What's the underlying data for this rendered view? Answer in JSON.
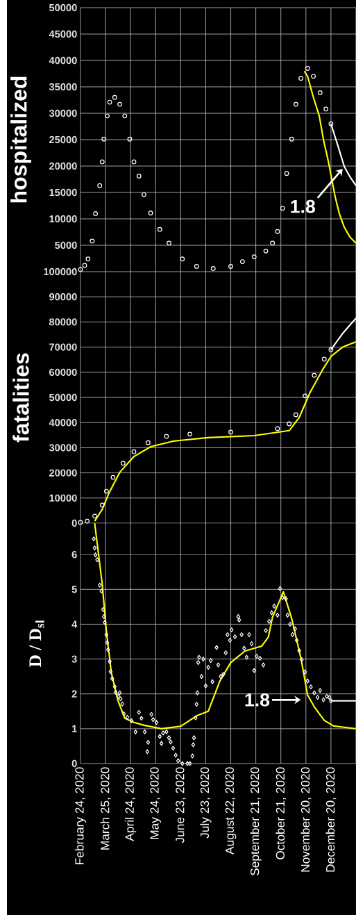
{
  "chart_data": [
    {
      "type": "scatter",
      "ylabel": "hospitalized",
      "xlim": [
        "2020-02-24",
        "2021-01-19"
      ],
      "ylim": [
        0,
        50000
      ],
      "grid": true,
      "tick_labels": "y",
      "xticks": [
        {
          "value": "2020-02-24",
          "label": null
        },
        {
          "value": "2020-03-25",
          "label": null
        },
        {
          "value": "2020-04-24",
          "label": null
        },
        {
          "value": "2020-05-24",
          "label": null
        },
        {
          "value": "2020-06-23",
          "label": null
        },
        {
          "value": "2020-07-23",
          "label": null
        },
        {
          "value": "2020-08-22",
          "label": null
        },
        {
          "value": "2020-09-21",
          "label": null
        },
        {
          "value": "2020-10-21",
          "label": null
        },
        {
          "value": "2020-11-20",
          "label": null
        },
        {
          "value": "2020-12-20",
          "label": null
        },
        {
          "value": "2021-01-19",
          "label": null
        }
      ],
      "yticks": [
        5000,
        10000,
        15000,
        20000,
        25000,
        30000,
        35000,
        40000,
        45000,
        50000
      ],
      "series": [
        {
          "type": "scatter",
          "marker": "circle",
          "color": "#ffffff",
          "x": [
            "2020-02-24",
            "2020-02-29",
            "2020-03-04",
            "2020-03-09",
            "2020-03-13",
            "2020-03-18",
            "2020-03-21",
            "2020-03-23",
            "2020-03-27",
            "2020-03-30",
            "2020-04-05",
            "2020-04-11",
            "2020-04-17",
            "2020-04-23",
            "2020-04-28",
            "2020-05-04",
            "2020-05-10",
            "2020-05-18",
            "2020-05-29",
            "2020-06-09",
            "2020-06-25",
            "2020-07-12",
            "2020-08-01",
            "2020-08-22",
            "2020-09-05",
            "2020-09-19",
            "2020-10-03",
            "2020-10-11",
            "2020-10-17",
            "2020-10-23",
            "2020-10-28",
            "2020-11-03",
            "2020-11-08",
            "2020-11-14",
            "2020-11-22",
            "2020-11-29",
            "2020-12-07",
            "2020-12-14",
            "2020-12-20"
          ],
          "values": [
            400,
            1200,
            2400,
            5800,
            11000,
            16300,
            20800,
            25100,
            29500,
            32100,
            33000,
            31700,
            29500,
            25100,
            20800,
            18100,
            14600,
            11100,
            8000,
            5400,
            2400,
            1000,
            600,
            1000,
            1900,
            2800,
            3900,
            5400,
            7600,
            12000,
            18600,
            25100,
            31700,
            36600,
            38500,
            37000,
            33900,
            30800,
            28000
          ]
        },
        {
          "type": "line",
          "marker": "none",
          "color": "#ffff00",
          "x": [
            "2020-11-18",
            "2020-11-22",
            "2020-11-29",
            "2020-12-06",
            "2020-12-11",
            "2020-12-17",
            "2020-12-25",
            "2020-12-30",
            "2021-01-05",
            "2021-01-12",
            "2021-01-19"
          ],
          "values": [
            38000,
            37000,
            33000,
            29500,
            25000,
            20800,
            14200,
            11000,
            8400,
            6500,
            5400
          ]
        },
        {
          "type": "line",
          "marker": "none",
          "color": "#ffffff",
          "x": [
            "2020-12-20",
            "2020-12-28",
            "2021-01-05",
            "2021-01-12",
            "2021-01-19"
          ],
          "values": [
            28000,
            24000,
            19900,
            17900,
            16300
          ]
        }
      ],
      "annotations": [
        {
          "text": "1.8",
          "x": "2021-01-03",
          "y": 19500
        }
      ]
    },
    {
      "type": "scatter",
      "ylabel": "fatalities",
      "xlim": [
        "2020-02-24",
        "2021-01-19"
      ],
      "ylim": [
        0,
        100000
      ],
      "grid": true,
      "tick_labels": "y",
      "xticks": [
        {
          "value": "2020-02-24",
          "label": null
        },
        {
          "value": "2020-03-25",
          "label": null
        },
        {
          "value": "2020-04-24",
          "label": null
        },
        {
          "value": "2020-05-24",
          "label": null
        },
        {
          "value": "2020-06-23",
          "label": null
        },
        {
          "value": "2020-07-23",
          "label": null
        },
        {
          "value": "2020-08-22",
          "label": null
        },
        {
          "value": "2020-09-21",
          "label": null
        },
        {
          "value": "2020-10-21",
          "label": null
        },
        {
          "value": "2020-11-20",
          "label": null
        },
        {
          "value": "2020-12-20",
          "label": null
        },
        {
          "value": "2021-01-19",
          "label": null
        }
      ],
      "yticks": [
        0,
        10000,
        20000,
        30000,
        40000,
        50000,
        60000,
        70000,
        80000,
        90000,
        100000
      ],
      "series": [
        {
          "type": "scatter",
          "marker": "circle",
          "color": "#ffffff",
          "x": [
            "2020-02-24",
            "2020-03-03",
            "2020-03-12",
            "2020-03-21",
            "2020-03-26",
            "2020-04-03",
            "2020-04-15",
            "2020-04-28",
            "2020-05-15",
            "2020-06-06",
            "2020-07-04",
            "2020-08-22",
            "2020-10-17",
            "2020-10-31",
            "2020-11-08",
            "2020-11-19",
            "2020-11-30",
            "2020-12-12",
            "2020-12-20"
          ],
          "values": [
            300,
            800,
            2800,
            7200,
            12700,
            18200,
            23800,
            28400,
            32000,
            34500,
            35400,
            36200,
            37600,
            39500,
            43100,
            50600,
            58800,
            65200,
            69000
          ]
        },
        {
          "type": "line",
          "marker": "none",
          "color": "#ffff00",
          "x": [
            "2020-03-12",
            "2020-03-21",
            "2020-03-29",
            "2020-04-11",
            "2020-04-28",
            "2020-05-18",
            "2020-06-14",
            "2020-07-26",
            "2020-09-19",
            "2020-10-31",
            "2020-11-12",
            "2020-11-25",
            "2020-12-10",
            "2020-12-20",
            "2021-01-03",
            "2021-01-19"
          ],
          "values": [
            800,
            5500,
            11900,
            20200,
            26500,
            30400,
            32600,
            34000,
            34800,
            36800,
            42000,
            52000,
            61000,
            66300,
            70000,
            72100
          ]
        },
        {
          "type": "line",
          "marker": "none",
          "color": "#ffffff",
          "x": [
            "2020-12-20",
            "2021-01-03",
            "2021-01-19"
          ],
          "values": [
            69000,
            75400,
            81500
          ]
        }
      ]
    },
    {
      "type": "scatter",
      "ylabel": "D / D$_{sl}$",
      "xlim": [
        "2020-02-24",
        "2021-01-19"
      ],
      "ylim": [
        0,
        6.9
      ],
      "grid": true,
      "xticks": [
        {
          "value": "2020-02-24",
          "label": "February 24, 2020"
        },
        {
          "value": "2020-03-25",
          "label": "March 25, 2020"
        },
        {
          "value": "2020-04-24",
          "label": "April 24, 2020"
        },
        {
          "value": "2020-05-24",
          "label": "May 24, 2020"
        },
        {
          "value": "2020-06-23",
          "label": "June 23, 2020"
        },
        {
          "value": "2020-07-23",
          "label": "July 23, 2020"
        },
        {
          "value": "2020-08-22",
          "label": "August 22, 2020"
        },
        {
          "value": "2020-09-21",
          "label": "September 21, 2020"
        },
        {
          "value": "2020-10-21",
          "label": "October 21, 2020"
        },
        {
          "value": "2020-11-20",
          "label": "November 20, 2020"
        },
        {
          "value": "2020-12-20",
          "label": "December 20, 2020"
        },
        {
          "value": "2021-01-19",
          "label": null
        }
      ],
      "yticks": [
        0,
        1,
        2,
        3,
        4,
        5,
        6
      ],
      "series": [
        {
          "type": "line",
          "marker": "none",
          "color": "#ffff00",
          "x": [
            "2020-03-12",
            "2020-03-21",
            "2020-03-26",
            "2020-04-01",
            "2020-04-09",
            "2020-04-17",
            "2020-04-28",
            "2020-05-10",
            "2020-05-31",
            "2020-06-23",
            "2020-07-12",
            "2020-07-26",
            "2020-08-09",
            "2020-08-22",
            "2020-09-08",
            "2020-09-28",
            "2020-10-06",
            "2020-10-11",
            "2020-10-24",
            "2020-11-03",
            "2020-11-14",
            "2020-11-22",
            "2020-11-30",
            "2020-12-12",
            "2020-12-23",
            "2021-01-19"
          ],
          "values": [
            6.9,
            5.16,
            3.8,
            2.6,
            1.8,
            1.3,
            1.18,
            1.1,
            1.0,
            1.07,
            1.37,
            1.5,
            2.37,
            2.9,
            3.23,
            3.37,
            3.63,
            4.2,
            4.93,
            4.16,
            3.03,
            1.97,
            1.63,
            1.24,
            1.08,
            1.0
          ]
        },
        {
          "type": "scatter",
          "marker": "diamond",
          "color": "#ffffff",
          "x": [
            "2020-03-11",
            "2020-03-12",
            "2020-03-13",
            "2020-03-15",
            "2020-03-18",
            "2020-03-20",
            "2020-03-22",
            "2020-03-23",
            "2020-03-24",
            "2020-03-26",
            "2020-03-27",
            "2020-03-28",
            "2020-03-30",
            "2020-03-31",
            "2020-04-02",
            "2020-04-05",
            "2020-04-06",
            "2020-04-09",
            "2020-04-11",
            "2020-04-12",
            "2020-04-14",
            "2020-04-16",
            "2020-04-20",
            "2020-04-25",
            "2020-04-30",
            "2020-05-04",
            "2020-05-07",
            "2020-05-11",
            "2020-05-14",
            "2020-05-15",
            "2020-05-19",
            "2020-05-21",
            "2020-05-25",
            "2020-05-29",
            "2020-05-31",
            "2020-06-02",
            "2020-06-06",
            "2020-06-09",
            "2020-06-11",
            "2020-06-14",
            "2020-06-17",
            "2020-06-20",
            "2020-06-25",
            "2020-07-01",
            "2020-07-04",
            "2020-07-07",
            "2020-07-08",
            "2020-07-09",
            "2020-07-11",
            "2020-07-12",
            "2020-07-13",
            "2020-07-14",
            "2020-07-15",
            "2020-07-18",
            "2020-07-20",
            "2020-07-23",
            "2020-07-26",
            "2020-07-29",
            "2020-07-31",
            "2020-08-05",
            "2020-08-07",
            "2020-08-10",
            "2020-08-13",
            "2020-08-16",
            "2020-08-18",
            "2020-08-21",
            "2020-08-23",
            "2020-08-27",
            "2020-08-31",
            "2020-09-01",
            "2020-09-04",
            "2020-09-07",
            "2020-09-10",
            "2020-09-13",
            "2020-09-16",
            "2020-09-19",
            "2020-09-22",
            "2020-09-26",
            "2020-09-30",
            "2020-10-03",
            "2020-10-07",
            "2020-10-10",
            "2020-10-13",
            "2020-10-17",
            "2020-10-20",
            "2020-10-23",
            "2020-10-27",
            "2020-10-29",
            "2020-11-01",
            "2020-11-04",
            "2020-11-07",
            "2020-11-09",
            "2020-11-12",
            "2020-11-15",
            "2020-11-19",
            "2020-11-22",
            "2020-11-26",
            "2020-11-30",
            "2020-12-04",
            "2020-12-07",
            "2020-12-11",
            "2020-12-15",
            "2020-12-18",
            "2020-12-20"
          ],
          "values": [
            6.45,
            6.19,
            5.99,
            5.85,
            5.12,
            4.95,
            4.42,
            4.22,
            4.05,
            3.7,
            3.47,
            3.27,
            2.93,
            2.64,
            2.44,
            2.21,
            2.05,
            1.93,
            2.03,
            1.86,
            1.71,
            1.43,
            1.33,
            1.23,
            0.91,
            1.47,
            1.3,
            0.91,
            0.34,
            0.61,
            1.41,
            1.26,
            1.18,
            0.78,
            0.58,
            0.88,
            0.91,
            0.74,
            0.62,
            0.44,
            0.24,
            0.08,
            0,
            0,
            0,
            0.22,
            0.54,
            0.74,
            1.31,
            1.7,
            2.03,
            2.9,
            3.05,
            2.5,
            3.0,
            2.23,
            2.76,
            2.96,
            2.35,
            3.33,
            2.83,
            2.5,
            2.56,
            3.18,
            3.7,
            3.54,
            3.84,
            3.64,
            4.22,
            4.12,
            3.7,
            3.31,
            3.05,
            3.7,
            3.44,
            2.67,
            3.08,
            3.02,
            2.83,
            3.82,
            4.08,
            4.33,
            4.52,
            4.26,
            5.02,
            4.76,
            4.73,
            4.26,
            4.0,
            3.7,
            3.87,
            3.54,
            3.24,
            2.98,
            2.63,
            2.37,
            2.2,
            2.03,
            1.9,
            2.1,
            1.83,
            1.93,
            1.9,
            1.8
          ]
        },
        {
          "type": "line",
          "marker": "none",
          "color": "#ffffff",
          "x": [
            "2020-12-20",
            "2021-01-19"
          ],
          "values": [
            1.8,
            1.8
          ]
        }
      ],
      "annotations": [
        "1.8"
      ]
    }
  ]
}
